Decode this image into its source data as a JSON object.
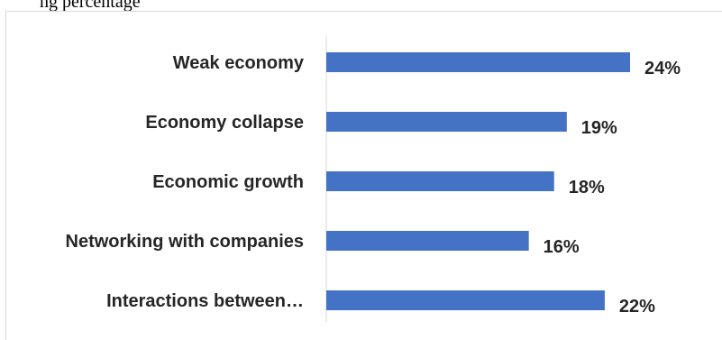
{
  "header_fragment": "ng percentage",
  "colors": {
    "bar": "#4472C4",
    "axis": "#d9d9d9",
    "text": "#262626"
  },
  "chart_data": {
    "type": "bar",
    "orientation": "horizontal",
    "categories": [
      "Weak economy",
      "Economy collapse",
      "Economic growth",
      "Networking with companies",
      "Interactions between…"
    ],
    "values": [
      24,
      19,
      18,
      16,
      22
    ],
    "value_labels": [
      "24%",
      "19%",
      "18%",
      "16%",
      "22%"
    ],
    "unit": "%",
    "xlim": [
      0,
      24
    ],
    "grid": false,
    "legend": "none"
  }
}
